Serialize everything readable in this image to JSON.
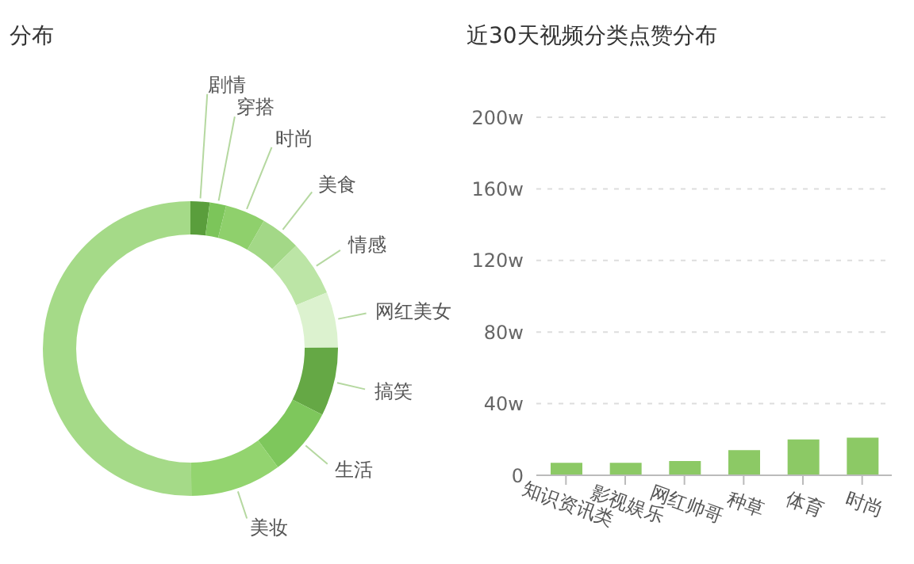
{
  "chart_data": [
    {
      "type": "donut",
      "title": "分布",
      "categories": [
        "剧情",
        "穿搭",
        "时尚",
        "美食",
        "情感",
        "网红美女",
        "搞笑",
        "生活",
        "美妆",
        null
      ],
      "values": [
        2.1,
        1.8,
        4.4,
        4.4,
        6.1,
        6.1,
        7.5,
        7.5,
        10,
        50.1
      ],
      "colors": [
        "#5a9e3c",
        "#7cc55a",
        "#8fd06c",
        "#a3d887",
        "#bce5a6",
        "#dcf2cf",
        "#65a845",
        "#7ec75c",
        "#93d46f",
        "#a5da88"
      ],
      "legend": false
    },
    {
      "type": "bar",
      "title": "近30天视频分类点赞分布",
      "categories": [
        "知识资讯类",
        "影视娱乐",
        "网红帅哥",
        "种草",
        "体育",
        "时尚"
      ],
      "values": [
        7,
        7,
        8,
        14,
        20,
        21
      ],
      "color": "#8cc965",
      "ylim": [
        0,
        200
      ],
      "yticks": [
        0,
        {
          "value": 40,
          "label": "40w"
        },
        {
          "value": 80,
          "label": "80w"
        },
        {
          "value": 120,
          "label": "120w"
        },
        {
          "value": 160,
          "label": "160w"
        },
        {
          "value": 200,
          "label": "200w"
        }
      ],
      "grid": "y",
      "legend": false
    }
  ]
}
